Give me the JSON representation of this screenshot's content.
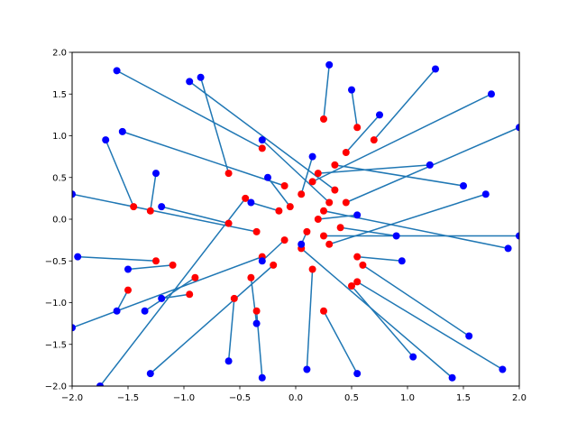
{
  "chart_data": {
    "type": "scatter",
    "title": "",
    "xlabel": "",
    "ylabel": "",
    "xlim": [
      -2.0,
      2.0
    ],
    "ylim": [
      -2.0,
      2.0
    ],
    "xticks": [
      "−2.0",
      "−1.5",
      "−1.0",
      "−0.5",
      "0.0",
      "0.5",
      "1.0",
      "1.5",
      "2.0"
    ],
    "yticks": [
      "−2.0",
      "−1.5",
      "−1.0",
      "−0.5",
      "0.0",
      "0.5",
      "1.0",
      "1.5",
      "2.0"
    ],
    "grid": false,
    "colors": {
      "segments": "#1f77b4",
      "start_points": "#ff0000",
      "end_points": "#0000ff"
    },
    "series": [
      {
        "values": [
          {
            "x0": -1.45,
            "y0": 0.15,
            "x1": -1.7,
            "y1": 0.95
          },
          {
            "x0": -1.25,
            "y0": -0.5,
            "x1": -1.95,
            "y1": -0.45
          },
          {
            "x0": -1.5,
            "y0": -0.85,
            "x1": -1.6,
            "y1": -1.1
          },
          {
            "x0": -0.9,
            "y0": -0.7,
            "x1": -1.35,
            "y1": -1.1
          },
          {
            "x0": -0.55,
            "y0": -0.95,
            "x1": -0.6,
            "y1": -1.7
          },
          {
            "x0": -0.35,
            "y0": -1.1,
            "x1": -0.3,
            "y1": -1.9
          },
          {
            "x0": 0.3,
            "y0": 0.2,
            "x1": -0.3,
            "y1": 0.95
          },
          {
            "x0": 0.25,
            "y0": 1.2,
            "x1": 0.3,
            "y1": 1.85
          },
          {
            "x0": 0.55,
            "y0": 1.1,
            "x1": 0.5,
            "y1": 1.55
          },
          {
            "x0": 0.7,
            "y0": 0.95,
            "x1": 1.25,
            "y1": 1.8
          },
          {
            "x0": 0.2,
            "y0": 0.55,
            "x1": 1.2,
            "y1": 0.65
          },
          {
            "x0": 0.35,
            "y0": 0.65,
            "x1": 1.5,
            "y1": 0.4
          },
          {
            "x0": 0.4,
            "y0": -0.1,
            "x1": 0.9,
            "y1": -0.2
          },
          {
            "x0": 0.6,
            "y0": -0.55,
            "x1": 1.55,
            "y1": -1.4
          },
          {
            "x0": 0.5,
            "y0": -0.8,
            "x1": 1.05,
            "y1": -1.65
          },
          {
            "x0": 0.15,
            "y0": -0.6,
            "x1": 0.1,
            "y1": -1.8
          },
          {
            "x0": 0.25,
            "y0": -1.1,
            "x1": 0.55,
            "y1": -1.85
          },
          {
            "x0": -0.6,
            "y0": -0.05,
            "x1": -1.2,
            "y1": 0.15
          },
          {
            "x0": -0.05,
            "y0": 0.15,
            "x1": -0.25,
            "y1": 0.5
          },
          {
            "x0": 0.1,
            "y0": -0.15,
            "x1": 0.05,
            "y1": -0.3
          },
          {
            "x0": -0.15,
            "y0": 0.1,
            "x1": -0.4,
            "y1": 0.2
          },
          {
            "x0": 0.2,
            "y0": 0.0,
            "x1": 0.55,
            "y1": 0.05
          },
          {
            "x0": -0.1,
            "y0": -0.25,
            "x1": -0.3,
            "y1": -0.5
          },
          {
            "x0": 0.05,
            "y0": 0.3,
            "x1": 0.15,
            "y1": 0.75
          },
          {
            "x0": -0.95,
            "y0": -0.9,
            "x1": -1.2,
            "y1": -0.95
          },
          {
            "x0": -1.1,
            "y0": -0.55,
            "x1": -1.5,
            "y1": -0.6
          },
          {
            "x0": -1.3,
            "y0": 0.1,
            "x1": -1.25,
            "y1": 0.55
          },
          {
            "x0": -0.4,
            "y0": -0.7,
            "x1": -0.35,
            "y1": -1.25
          },
          {
            "x0": 0.45,
            "y0": 0.8,
            "x1": 0.75,
            "y1": 1.25
          },
          {
            "x0": 0.55,
            "y0": -0.45,
            "x1": 0.95,
            "y1": -0.5
          },
          {
            "x0": 0.35,
            "y0": 0.35,
            "x1": -0.95,
            "y1": 1.65
          },
          {
            "x0": -0.1,
            "y0": 0.4,
            "x1": -1.55,
            "y1": 1.05
          },
          {
            "x0": 0.45,
            "y0": 0.2,
            "x1": 2.0,
            "y1": 1.1
          },
          {
            "x0": 0.25,
            "y0": -0.2,
            "x1": 2.0,
            "y1": -0.2
          },
          {
            "x0": -0.3,
            "y0": -0.45,
            "x1": -2.0,
            "y1": -1.3
          },
          {
            "x0": 0.05,
            "y0": -0.35,
            "x1": 1.4,
            "y1": -1.9
          },
          {
            "x0": -0.45,
            "y0": 0.25,
            "x1": -1.75,
            "y1": -2.0
          },
          {
            "x0": 0.15,
            "y0": 0.45,
            "x1": 1.75,
            "y1": 1.5
          },
          {
            "x0": -0.35,
            "y0": -0.15,
            "x1": -2.0,
            "y1": 0.3
          },
          {
            "x0": 0.25,
            "y0": 0.1,
            "x1": 1.9,
            "y1": -0.35
          },
          {
            "x0": -0.6,
            "y0": 0.55,
            "x1": -0.85,
            "y1": 1.7
          },
          {
            "x0": 0.55,
            "y0": -0.75,
            "x1": 1.85,
            "y1": -1.8
          },
          {
            "x0": -0.3,
            "y0": 0.85,
            "x1": -1.6,
            "y1": 1.78
          },
          {
            "x0": 0.3,
            "y0": -0.3,
            "x1": 1.7,
            "y1": 0.3
          },
          {
            "x0": -0.2,
            "y0": -0.55,
            "x1": -1.3,
            "y1": -1.85
          }
        ]
      }
    ]
  }
}
